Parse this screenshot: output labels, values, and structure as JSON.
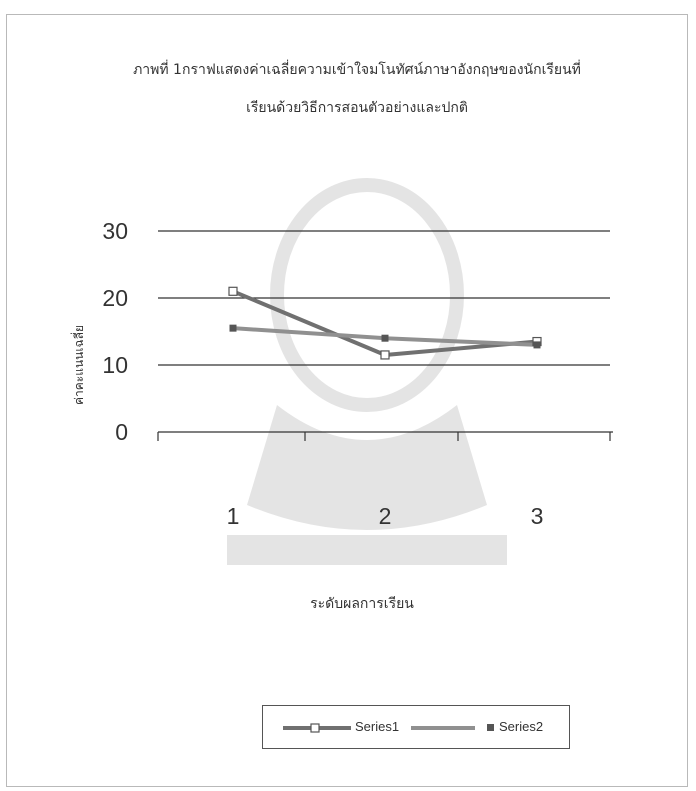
{
  "chart_data": {
    "type": "line",
    "title_line1": "ภาพที่ 1กราฟแสดงค่าเฉลี่ยความเข้าใจมโนทัศน์ภาษาอังกฤษของนักเรียนที่",
    "title_line2": "เรียนด้วยวิธีการสอนตัวอย่างและปกติ",
    "xlabel": "ระดับผลการเรียน",
    "ylabel": "ค่าคะแนนเฉลี่ย",
    "categories": [
      "1",
      "2",
      "3"
    ],
    "yticks": [
      "0",
      "10",
      "20",
      "30"
    ],
    "ylim": [
      0,
      30
    ],
    "grid": true,
    "legend_position": "bottom",
    "series": [
      {
        "name": "Series1",
        "values": [
          21,
          11.5,
          13.5
        ],
        "color": "#707070"
      },
      {
        "name": "Series2",
        "values": [
          15.5,
          14,
          13
        ],
        "color": "#909090"
      }
    ]
  }
}
